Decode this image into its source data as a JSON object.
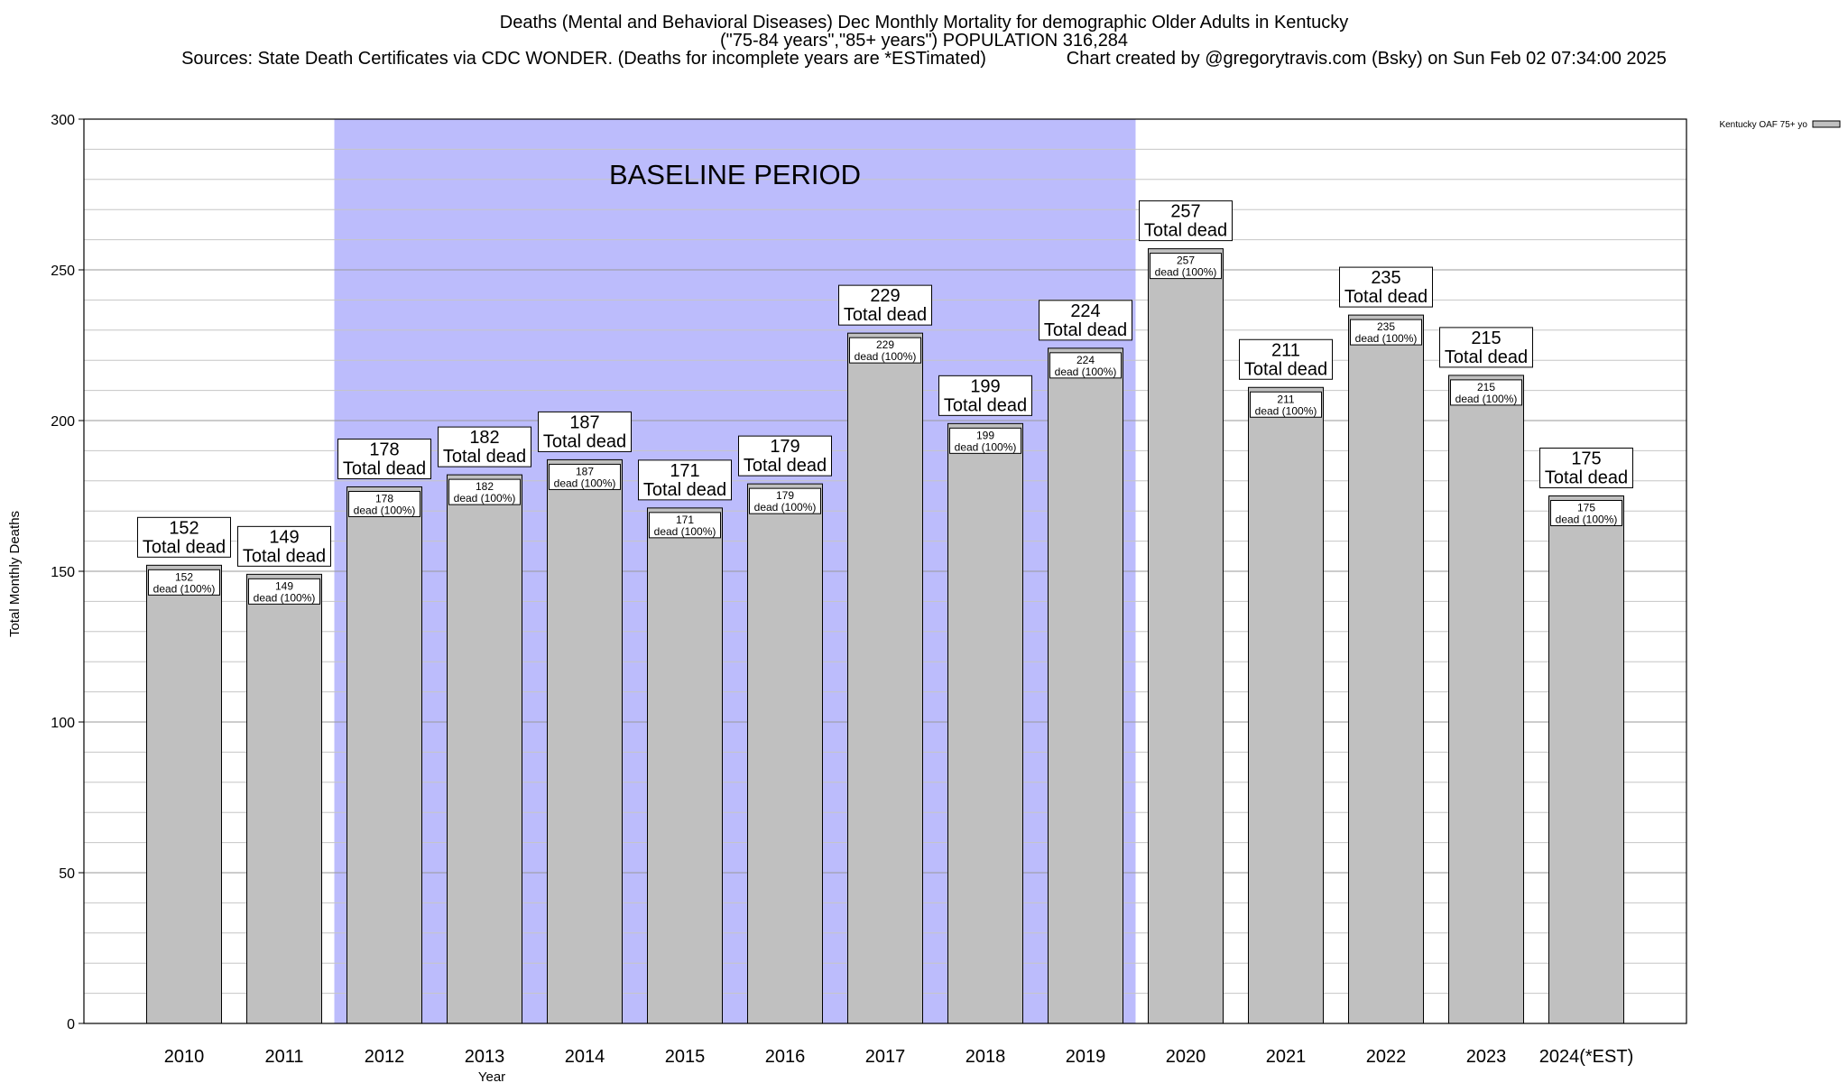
{
  "header": {
    "title_line1": "Deaths (Mental and Behavioral Diseases) Dec Monthly Mortality for demographic Older Adults in Kentucky",
    "title_line2": "(\"75-84 years\",\"85+ years\") POPULATION 316,284",
    "sources": "Sources: State Death Certificates via CDC WONDER. (Deaths for incomplete years are *ESTimated)",
    "credit": "Chart created by @gregorytravis.com (Bsky) on Sun Feb 02 07:34:00 2025"
  },
  "chart_data": {
    "type": "bar",
    "categories": [
      "2010",
      "2011",
      "2012",
      "2013",
      "2014",
      "2015",
      "2016",
      "2017",
      "2018",
      "2019",
      "2020",
      "2021",
      "2022",
      "2023",
      "2024(*EST)"
    ],
    "series": [
      {
        "name": "Kentucky OAF 75+ yo",
        "values": [
          152,
          149,
          178,
          182,
          187,
          171,
          179,
          229,
          199,
          224,
          257,
          211,
          235,
          215,
          175
        ],
        "color": "#c0c0c0"
      }
    ],
    "top_label_suffix": "Total dead",
    "inner_label_suffix": "dead (100%)",
    "xlabel": "Year",
    "ylabel": "Total Monthly Deaths",
    "ylim": [
      0,
      300
    ],
    "yticks": [
      0,
      50,
      100,
      150,
      200,
      250,
      300
    ],
    "minor_tick_step": 10,
    "grid": true,
    "legend_position": "top-right",
    "baseline": {
      "label": "BASELINE PERIOD",
      "start": "2012",
      "end": "2019",
      "color": "#bcbcfc"
    }
  }
}
